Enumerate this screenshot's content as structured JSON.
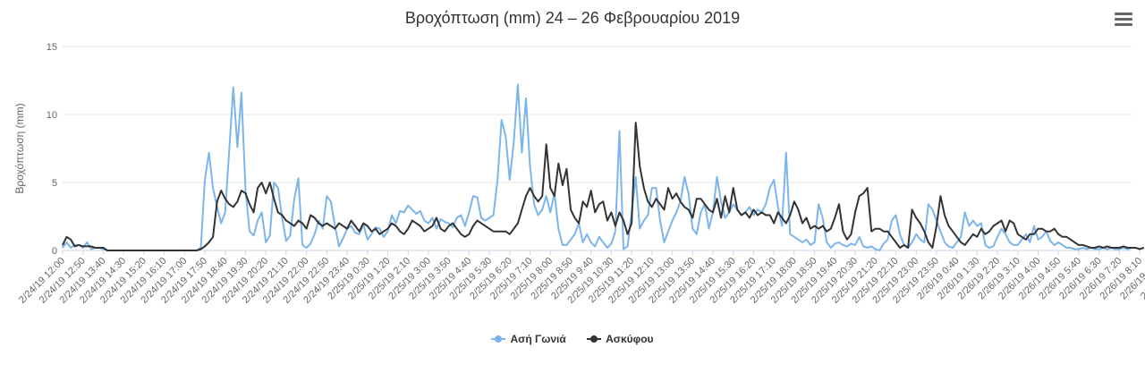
{
  "chart_data": {
    "type": "line",
    "title": "Βροχόπτωση (mm) 24 – 26 Φεβρουαρίου 2019",
    "ylabel": "Βροχόπτωση (mm)",
    "ylim": [
      0,
      15
    ],
    "yticks": [
      0,
      5,
      10,
      15
    ],
    "grid": true,
    "legend_position": "bottom-center",
    "x_tick_labels": [
      "2/24/19 12:00",
      "2/24/19 12:50",
      "2/24/19 13:40",
      "2/24/19 14:30",
      "2/24/19 15:20",
      "2/24/19 16:10",
      "2/24/19 17:00",
      "2/24/19 17:50",
      "2/24/19 18:40",
      "2/24/19 19:30",
      "2/24/19 20:20",
      "2/24/19 21:10",
      "2/24/19 22:00",
      "2/24/19 22:50",
      "2/24/19 23:40",
      "2/25/19 0:30",
      "2/25/19 1:20",
      "2/25/19 2:10",
      "2/25/19 3:00",
      "2/25/19 3:50",
      "2/25/19 4:40",
      "2/25/19 5:30",
      "2/25/19 6:20",
      "2/25/19 7:10",
      "2/25/19 8:00",
      "2/25/19 8:50",
      "2/25/19 9:40",
      "2/25/19 10:30",
      "2/25/19 11:20",
      "2/25/19 12:10",
      "2/25/19 13:00",
      "2/25/19 13:50",
      "2/25/19 14:40",
      "2/25/19 15:30",
      "2/25/19 16:20",
      "2/25/19 17:10",
      "2/25/19 18:00",
      "2/25/19 18:50",
      "2/25/19 19:40",
      "2/25/19 20:30",
      "2/25/19 21:20",
      "2/25/19 22:10",
      "2/25/19 23:00",
      "2/25/19 23:50",
      "2/26/19 0:40",
      "2/26/19 1:30",
      "2/26/19 2:20",
      "2/26/19 3:10",
      "2/26/19 4:00",
      "2/26/19 4:50",
      "2/26/19 5:40",
      "2/26/19 6:30",
      "2/26/19 7:20",
      "2/26/19 8:10",
      "2/26/19 9:00",
      "2/26/19 9:50",
      "2/26/19 10:40",
      "2/26/19 11:30"
    ],
    "series": [
      {
        "name": "Ασή Γωνιά",
        "color": "#7cb5ec",
        "values": [
          0.2,
          0.6,
          0.2,
          0.4,
          0.4,
          0.2,
          0.6,
          0.1,
          0.2,
          0.2,
          0.1,
          0,
          0,
          0,
          0,
          0,
          0,
          0,
          0,
          0,
          0,
          0,
          0,
          0,
          0,
          0,
          0,
          0,
          0,
          0,
          0,
          0,
          0,
          0,
          0.2,
          5.2,
          7.2,
          4.6,
          3.2,
          2.0,
          2.8,
          7.4,
          12.0,
          7.6,
          11.6,
          4.4,
          1.4,
          1.1,
          2.2,
          2.8,
          0.6,
          1.1,
          5.0,
          4.6,
          2.4,
          0.7,
          1.1,
          3.8,
          5.3,
          0.4,
          0.2,
          0.5,
          1.2,
          2.2,
          1.6,
          4.0,
          3.6,
          1.8,
          0.3,
          0.9,
          1.6,
          1.8,
          1.3,
          1.2,
          1.9,
          0.8,
          1.2,
          1.7,
          1.6,
          1.0,
          1.4,
          2.6,
          2.0,
          2.9,
          2.8,
          3.3,
          3.0,
          2.7,
          2.9,
          2.2,
          2.0,
          2.4,
          1.6,
          2.3,
          2.1,
          2.0,
          1.7,
          2.4,
          2.6,
          1.8,
          2.8,
          4.0,
          3.9,
          2.4,
          2.2,
          2.4,
          2.6,
          5.2,
          9.6,
          8.4,
          5.2,
          8.0,
          12.2,
          7.2,
          11.2,
          6.2,
          3.4,
          2.6,
          3.0,
          4.0,
          2.8,
          4.2,
          1.6,
          0.4,
          0.4,
          0.8,
          1.2,
          2.0,
          0.6,
          1.2,
          0.6,
          0.3,
          1.0,
          0.6,
          0.2,
          0.5,
          1.4,
          8.8,
          0.1,
          0.3,
          2.8,
          5.4,
          1.6,
          2.2,
          2.6,
          4.6,
          4.6,
          2.2,
          0.6,
          1.4,
          2.2,
          2.8,
          3.6,
          5.4,
          4.2,
          1.6,
          1.2,
          2.8,
          3.4,
          1.6,
          2.8,
          5.4,
          3.6,
          2.4,
          2.8,
          3.4,
          3.0,
          2.6,
          2.8,
          3.2,
          2.6,
          3.0,
          2.8,
          3.4,
          4.6,
          5.2,
          3.2,
          1.8,
          7.2,
          1.2,
          1.0,
          0.8,
          0.6,
          0.8,
          0.4,
          0.6,
          3.4,
          2.4,
          0.6,
          0.2,
          0.5,
          0.6,
          0.4,
          0.3,
          0.5,
          0.4,
          1.0,
          0.3,
          0.2,
          0.3,
          0.1,
          0,
          0.5,
          0.8,
          2.2,
          2.6,
          1.2,
          0.4,
          0.2,
          0.6,
          1.2,
          0.8,
          0.6,
          3.4,
          3.0,
          2.2,
          1.4,
          0.6,
          0.3,
          0.2,
          0.6,
          1.0,
          2.8,
          1.8,
          2.2,
          1.8,
          2.0,
          0.4,
          0.2,
          0.3,
          1.0,
          1.6,
          1.2,
          0.6,
          0.4,
          0.4,
          0.8,
          1.2,
          0.6,
          1.8,
          0.8,
          1.0,
          1.4,
          0.7,
          0.4,
          0.6,
          0.4,
          0.2,
          0.2,
          0.1,
          0.1,
          0.2,
          0.1,
          0.2,
          0.1,
          0.1,
          0.2,
          0.1,
          0.2,
          0.1,
          0.1,
          0.2,
          0.1,
          0.2
        ]
      },
      {
        "name": "Ασκύφου",
        "color": "#333333",
        "values": [
          0.4,
          1.0,
          0.8,
          0.3,
          0.4,
          0.3,
          0.3,
          0.3,
          0.2,
          0.2,
          0.2,
          0,
          0,
          0,
          0,
          0,
          0,
          0,
          0,
          0,
          0,
          0,
          0,
          0,
          0,
          0,
          0,
          0,
          0,
          0,
          0,
          0,
          0,
          0,
          0.1,
          0.3,
          0.6,
          1.0,
          3.6,
          4.4,
          3.8,
          3.4,
          3.2,
          3.6,
          4.4,
          4.2,
          3.4,
          2.8,
          4.6,
          5.0,
          4.2,
          5.0,
          3.8,
          2.8,
          2.6,
          2.2,
          2.0,
          1.8,
          2.2,
          2.0,
          1.6,
          2.6,
          2.4,
          2.0,
          1.8,
          2.0,
          1.8,
          1.6,
          2.0,
          1.8,
          1.6,
          2.2,
          1.8,
          1.4,
          2.0,
          1.8,
          1.4,
          1.6,
          1.2,
          1.4,
          1.6,
          2.0,
          1.8,
          1.4,
          1.2,
          1.6,
          2.2,
          2.0,
          1.8,
          1.4,
          1.6,
          1.8,
          2.4,
          1.6,
          1.4,
          1.8,
          2.0,
          1.6,
          1.2,
          1.0,
          1.2,
          1.8,
          2.2,
          2.0,
          1.8,
          1.6,
          1.4,
          1.4,
          1.4,
          1.4,
          1.2,
          1.6,
          2.0,
          3.0,
          4.0,
          4.6,
          4.0,
          3.6,
          4.0,
          7.8,
          4.6,
          4.0,
          6.4,
          4.8,
          6.0,
          3.0,
          2.4,
          2.0,
          3.6,
          3.2,
          4.4,
          2.8,
          3.4,
          3.6,
          2.2,
          2.8,
          1.8,
          2.8,
          2.2,
          1.2,
          2.0,
          9.4,
          6.2,
          4.6,
          3.6,
          3.2,
          3.8,
          3.4,
          3.0,
          4.6,
          3.8,
          4.2,
          3.6,
          3.2,
          3.0,
          2.4,
          3.8,
          3.8,
          3.4,
          3.0,
          2.8,
          3.8,
          2.4,
          4.0,
          2.8,
          4.6,
          3.0,
          2.6,
          2.8,
          2.4,
          3.0,
          2.6,
          2.8,
          2.6,
          2.6,
          2.0,
          2.8,
          2.4,
          2.0,
          2.6,
          3.6,
          3.0,
          2.0,
          2.4,
          1.6,
          1.8,
          1.6,
          1.8,
          1.4,
          1.6,
          2.4,
          3.4,
          1.4,
          0.8,
          1.2,
          2.8,
          4.0,
          4.2,
          4.6,
          1.4,
          1.6,
          1.6,
          1.4,
          1.4,
          1.0,
          0.6,
          0.2,
          0.4,
          0.2,
          3.0,
          2.4,
          2.0,
          1.4,
          0.6,
          0.2,
          1.8,
          4.0,
          2.6,
          1.8,
          1.4,
          1.0,
          0.6,
          0.4,
          0.8,
          1.2,
          1.0,
          1.6,
          1.2,
          1.4,
          1.8,
          2.0,
          2.2,
          1.4,
          2.2,
          2.0,
          1.2,
          1.0,
          0.8,
          1.2,
          1.2,
          1.6,
          1.6,
          1.4,
          1.4,
          1.6,
          1.2,
          1.0,
          1.0,
          0.8,
          0.6,
          0.4,
          0.4,
          0.3,
          0.2,
          0.2,
          0.3,
          0.2,
          0.3,
          0.2,
          0.2,
          0.2,
          0.3,
          0.2,
          0.2,
          0.2,
          0.1,
          0.2
        ]
      }
    ]
  }
}
